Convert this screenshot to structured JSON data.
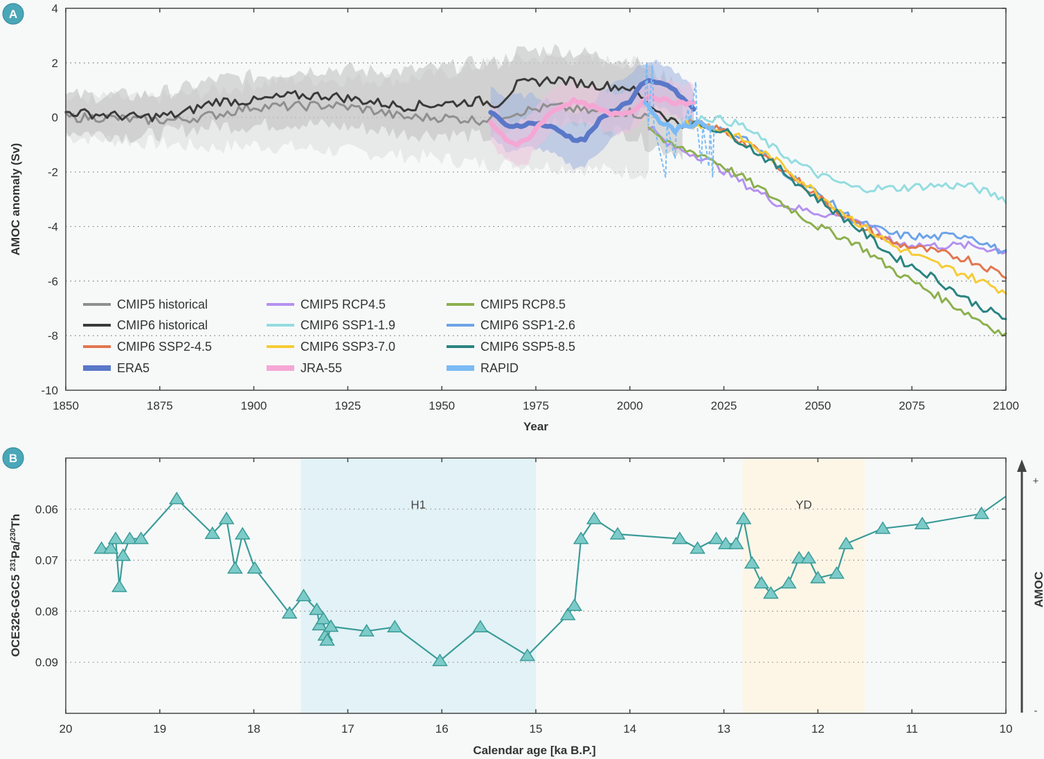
{
  "colors": {
    "background": "#f7f9f9",
    "badge": "#4aa7b8",
    "axis": "#444444",
    "grid": "#888888",
    "band_h1": "#e2f2f6",
    "band_yd": "#fdf6e7",
    "proxy_line": "#3a9b98",
    "proxy_fill": "#7ccbc8"
  },
  "chart_data": [
    {
      "panel": "A",
      "type": "line",
      "title": "",
      "xlabel": "Year",
      "ylabel": "AMOC anomaly (Sv)",
      "xlim": [
        1850,
        2100
      ],
      "ylim": [
        -10,
        4
      ],
      "x_ticks": [
        1850,
        1875,
        1900,
        1925,
        1950,
        1975,
        2000,
        2025,
        2050,
        2075,
        2100
      ],
      "y_ticks": [
        4,
        2,
        0,
        -2,
        -4,
        -6,
        -8,
        -10
      ],
      "grid": "horizontal dotted",
      "legend_placement": "bottom-left",
      "series": [
        {
          "name": "CMIP5 historical",
          "color": "#8f8f8f",
          "shade": "#d4d4d4",
          "width": 3,
          "x": [
            1850,
            1860,
            1870,
            1880,
            1890,
            1900,
            1910,
            1920,
            1930,
            1940,
            1950,
            1960,
            1970,
            1980,
            1990,
            2000,
            2005
          ],
          "y": [
            0,
            0,
            -0.1,
            -0.1,
            0.1,
            0.4,
            0.4,
            0.45,
            0.3,
            0,
            0,
            -0.1,
            0.2,
            0.4,
            0.2,
            0.2,
            0
          ],
          "band": [
            [
              -0.7,
              0.7
            ],
            [
              -0.8,
              0.7
            ],
            [
              -0.9,
              0.7
            ],
            [
              -1,
              0.8
            ],
            [
              -1.1,
              1
            ],
            [
              -1,
              1.2
            ],
            [
              -1.1,
              1.4
            ],
            [
              -1.2,
              1.4
            ],
            [
              -1.3,
              1.4
            ],
            [
              -1.4,
              1.4
            ],
            [
              -1.5,
              1.6
            ],
            [
              -1.7,
              1.9
            ],
            [
              -1.7,
              2.1
            ],
            [
              -1.8,
              2.2
            ],
            [
              -1.9,
              2.1
            ],
            [
              -2,
              2.0
            ],
            [
              -2,
              1.9
            ]
          ]
        },
        {
          "name": "CMIP6 historical",
          "color": "#3a3a3a",
          "shade": "#bdbdbd",
          "width": 3,
          "x": [
            1850,
            1860,
            1870,
            1880,
            1890,
            1900,
            1910,
            1920,
            1930,
            1940,
            1950,
            1960,
            1965,
            1970,
            1980,
            1990,
            2000,
            2005,
            2010,
            2014
          ],
          "y": [
            0.2,
            0.1,
            0,
            0.1,
            0.6,
            0.6,
            0.8,
            0.8,
            0.6,
            0.4,
            0.5,
            0.6,
            0.5,
            1.2,
            1.4,
            1.2,
            1.1,
            0.5,
            0.0,
            -0.3
          ],
          "band": [
            [
              -0.5,
              0.8
            ],
            [
              -0.6,
              0.8
            ],
            [
              -0.7,
              0.8
            ],
            [
              -0.5,
              1.0
            ],
            [
              -0.3,
              1.4
            ],
            [
              -0.3,
              1.5
            ],
            [
              -0.2,
              1.7
            ],
            [
              -0.3,
              1.8
            ],
            [
              -0.4,
              1.7
            ],
            [
              -0.6,
              1.7
            ],
            [
              -0.6,
              1.8
            ],
            [
              -0.7,
              2.0
            ],
            [
              -0.8,
              2.0
            ],
            [
              -0.2,
              2.4
            ],
            [
              0,
              2.5
            ],
            [
              -0.3,
              2.3
            ],
            [
              -0.6,
              2.1
            ],
            [
              -1,
              1.8
            ],
            [
              -1.2,
              1.4
            ],
            [
              -1.3,
              1.1
            ]
          ]
        },
        {
          "name": "CMIP5 RCP4.5",
          "color": "#b491ef",
          "width": 3,
          "x": [
            2005,
            2010,
            2020,
            2030,
            2040,
            2050,
            2060,
            2070,
            2080,
            2090,
            2100
          ],
          "y": [
            -0.3,
            -1.0,
            -1.5,
            -2.4,
            -3.2,
            -3.5,
            -3.7,
            -4.6,
            -4.7,
            -4.7,
            -4.9
          ]
        },
        {
          "name": "CMIP5 RCP8.5",
          "color": "#8cb04e",
          "width": 3,
          "x": [
            2005,
            2010,
            2020,
            2030,
            2040,
            2050,
            2060,
            2070,
            2080,
            2090,
            2100
          ],
          "y": [
            -0.3,
            -1.0,
            -1.4,
            -2.2,
            -3.1,
            -4.0,
            -4.6,
            -5.6,
            -6.4,
            -7.2,
            -8.0
          ]
        },
        {
          "name": "CMIP6 SSP1-1.9",
          "color": "#94dce0",
          "width": 3,
          "x": [
            2015,
            2020,
            2025,
            2030,
            2040,
            2050,
            2060,
            2070,
            2080,
            2090,
            2100
          ],
          "y": [
            -0.1,
            0,
            -0.1,
            -0.3,
            -1.3,
            -2.1,
            -2.6,
            -2.6,
            -2.5,
            -2.5,
            -3.0
          ]
        },
        {
          "name": "CMIP6 SSP1-2.6",
          "color": "#6da3e8",
          "width": 3,
          "x": [
            2015,
            2020,
            2025,
            2030,
            2040,
            2050,
            2060,
            2070,
            2080,
            2090,
            2100
          ],
          "y": [
            -0.2,
            -0.3,
            -0.5,
            -0.7,
            -1.9,
            -2.8,
            -3.8,
            -4.3,
            -4.4,
            -4.3,
            -5.0
          ]
        },
        {
          "name": "CMIP6 SSP2-4.5",
          "color": "#e27650",
          "width": 3,
          "x": [
            2015,
            2020,
            2025,
            2030,
            2040,
            2050,
            2060,
            2070,
            2080,
            2090,
            2100
          ],
          "y": [
            -0.2,
            -0.3,
            -0.5,
            -0.9,
            -1.8,
            -2.9,
            -3.9,
            -4.6,
            -4.9,
            -5.2,
            -5.8
          ]
        },
        {
          "name": "CMIP6 SSP3-7.0",
          "color": "#f6cb35",
          "width": 3,
          "x": [
            2015,
            2020,
            2025,
            2030,
            2040,
            2050,
            2060,
            2070,
            2080,
            2090,
            2100
          ],
          "y": [
            -0.2,
            -0.3,
            -0.5,
            -0.8,
            -1.7,
            -2.8,
            -3.8,
            -4.7,
            -5.3,
            -5.8,
            -6.4
          ]
        },
        {
          "name": "CMIP6 SSP5-8.5",
          "color": "#2a8480",
          "width": 3,
          "x": [
            2015,
            2020,
            2025,
            2030,
            2040,
            2050,
            2060,
            2070,
            2080,
            2090,
            2100
          ],
          "y": [
            -0.2,
            -0.3,
            -0.5,
            -0.9,
            -1.9,
            -3.0,
            -4.0,
            -5.1,
            -5.8,
            -6.7,
            -7.4
          ]
        },
        {
          "name": "ERA5",
          "color": "#5a78c8",
          "shade": "#9fb3e0",
          "width": 7,
          "x": [
            1963,
            1967,
            1970,
            1975,
            1980,
            1985,
            1988,
            1992,
            1995,
            2000,
            2003,
            2005,
            2010,
            2014,
            2017
          ],
          "y": [
            0.2,
            -0.3,
            -0.3,
            -0.2,
            -0.4,
            -0.8,
            -0.8,
            -0.1,
            0.2,
            0.6,
            1.2,
            1.3,
            1.2,
            0.7,
            0.3
          ],
          "band": [
            [
              -0.7,
              1.2
            ],
            [
              -1.2,
              0.7
            ],
            [
              -1.2,
              0.8
            ],
            [
              -1.1,
              0.8
            ],
            [
              -1.4,
              0.6
            ],
            [
              -1.8,
              0.2
            ],
            [
              -1.8,
              0.2
            ],
            [
              -1.2,
              0.9
            ],
            [
              -0.8,
              1.2
            ],
            [
              -0.4,
              1.6
            ],
            [
              0.3,
              2.0
            ],
            [
              0.4,
              2.1
            ],
            [
              0.3,
              1.9
            ],
            [
              -0.2,
              1.4
            ],
            [
              -0.5,
              1.0
            ]
          ]
        },
        {
          "name": "JRA-55",
          "color": "#f5a7d4",
          "shade": "#efc1dd",
          "width": 7,
          "x": [
            1963,
            1967,
            1970,
            1973,
            1975,
            1980,
            1985,
            1990,
            1995,
            2000,
            2003,
            2005,
            2010,
            2014,
            2017
          ],
          "y": [
            -0.2,
            -0.8,
            -1.0,
            -0.8,
            -0.4,
            0.3,
            0.6,
            0.4,
            0.1,
            0.2,
            0.5,
            0.8,
            0.6,
            0.5,
            0.5
          ],
          "band": [
            [
              -0.9,
              0.5
            ],
            [
              -1.6,
              -0.1
            ],
            [
              -1.8,
              -0.2
            ],
            [
              -1.6,
              0
            ],
            [
              -1.1,
              0.3
            ],
            [
              -0.4,
              1.1
            ],
            [
              -0.1,
              1.3
            ],
            [
              -0.3,
              1.1
            ],
            [
              -0.6,
              0.9
            ],
            [
              -0.5,
              1.0
            ],
            [
              -0.2,
              1.3
            ],
            [
              0.1,
              1.5
            ],
            [
              0,
              1.3
            ],
            [
              -0.1,
              1.2
            ],
            [
              -0.1,
              1.2
            ]
          ]
        },
        {
          "name": "RAPID",
          "color": "#7bbbf4",
          "width": 6,
          "x": [
            2004,
            2006,
            2008,
            2010,
            2012,
            2014,
            2016,
            2018,
            2020,
            2022
          ],
          "y": [
            0.6,
            0.2,
            -0.2,
            -0.3,
            -0.5,
            -0.3,
            -0.3,
            -0.2,
            -0.3,
            -0.4
          ],
          "monthly_dashed_extremes": [
            [
              2004.5,
              2.0
            ],
            [
              2006,
              1.9
            ],
            [
              2009.5,
              -2.2
            ],
            [
              2012,
              -1.5
            ],
            [
              2014,
              -0.2
            ],
            [
              2015.5,
              0.3
            ],
            [
              2017.5,
              1.3
            ],
            [
              2019,
              -1.7
            ],
            [
              2021,
              -1.8
            ],
            [
              2022,
              -2.2
            ]
          ]
        }
      ]
    },
    {
      "panel": "B",
      "type": "line",
      "title": "",
      "xlabel": "Calendar age [ka B.P.]",
      "ylabel": "OCE326-GGC5 231Pa/230Th",
      "ylabel_parts": {
        "prefix": "OCE326-GGC5 ",
        "sup1": "231",
        "mid": "Pa/",
        "sup2": "230",
        "suffix": "Th"
      },
      "xlim": [
        20,
        10
      ],
      "ylim": [
        0.1,
        0.05
      ],
      "y_inverted": true,
      "x_ticks": [
        20,
        19,
        18,
        17,
        16,
        15,
        14,
        13,
        12,
        11,
        10
      ],
      "y_ticks": [
        0.06,
        0.07,
        0.08,
        0.09
      ],
      "y_tick_labels": [
        "0.06",
        "0.07",
        "0.08",
        "0.09"
      ],
      "grid": "horizontal dotted",
      "marker": "triangle",
      "bands": [
        {
          "label": "H1",
          "from": 17.5,
          "to": 15.0
        },
        {
          "label": "YD",
          "from": 12.8,
          "to": 11.5
        }
      ],
      "right_axis": {
        "label": "AMOC",
        "top": "+",
        "bottom": "-"
      },
      "series": [
        {
          "name": "OCE326-GGC5",
          "x": [
            19.62,
            19.52,
            19.47,
            19.43,
            19.39,
            19.32,
            19.2,
            18.82,
            18.44,
            18.29,
            18.2,
            18.12,
            17.99,
            17.62,
            17.47,
            17.33,
            17.3,
            17.26,
            17.24,
            17.22,
            17.18,
            16.8,
            16.5,
            16.02,
            15.59,
            15.09,
            14.66,
            14.59,
            14.52,
            14.38,
            14.13,
            13.47,
            13.28,
            13.08,
            12.98,
            12.87,
            12.79,
            12.7,
            12.6,
            12.5,
            12.31,
            12.2,
            12.1,
            12.0,
            11.8,
            11.7,
            11.31,
            10.89,
            10.26,
            10.0
          ],
          "y": [
            0.0677,
            0.0677,
            0.0658,
            0.0752,
            0.0691,
            0.0658,
            0.0658,
            0.058,
            0.0648,
            0.0619,
            0.0716,
            0.0649,
            0.0716,
            0.0804,
            0.077,
            0.0797,
            0.0827,
            0.0815,
            0.0847,
            0.0857,
            0.083,
            0.0839,
            0.0831,
            0.0897,
            0.0831,
            0.0887,
            0.0807,
            0.0789,
            0.0658,
            0.0619,
            0.0649,
            0.0658,
            0.0677,
            0.0658,
            0.0668,
            0.0668,
            0.0619,
            0.0706,
            0.0745,
            0.0765,
            0.0745,
            0.0696,
            0.0696,
            0.0735,
            0.0726,
            0.0668,
            0.0638,
            0.0629,
            0.0609,
            0.0575
          ]
        }
      ]
    }
  ],
  "panels": {
    "a": {
      "badge": "A"
    },
    "b": {
      "badge": "B"
    }
  }
}
